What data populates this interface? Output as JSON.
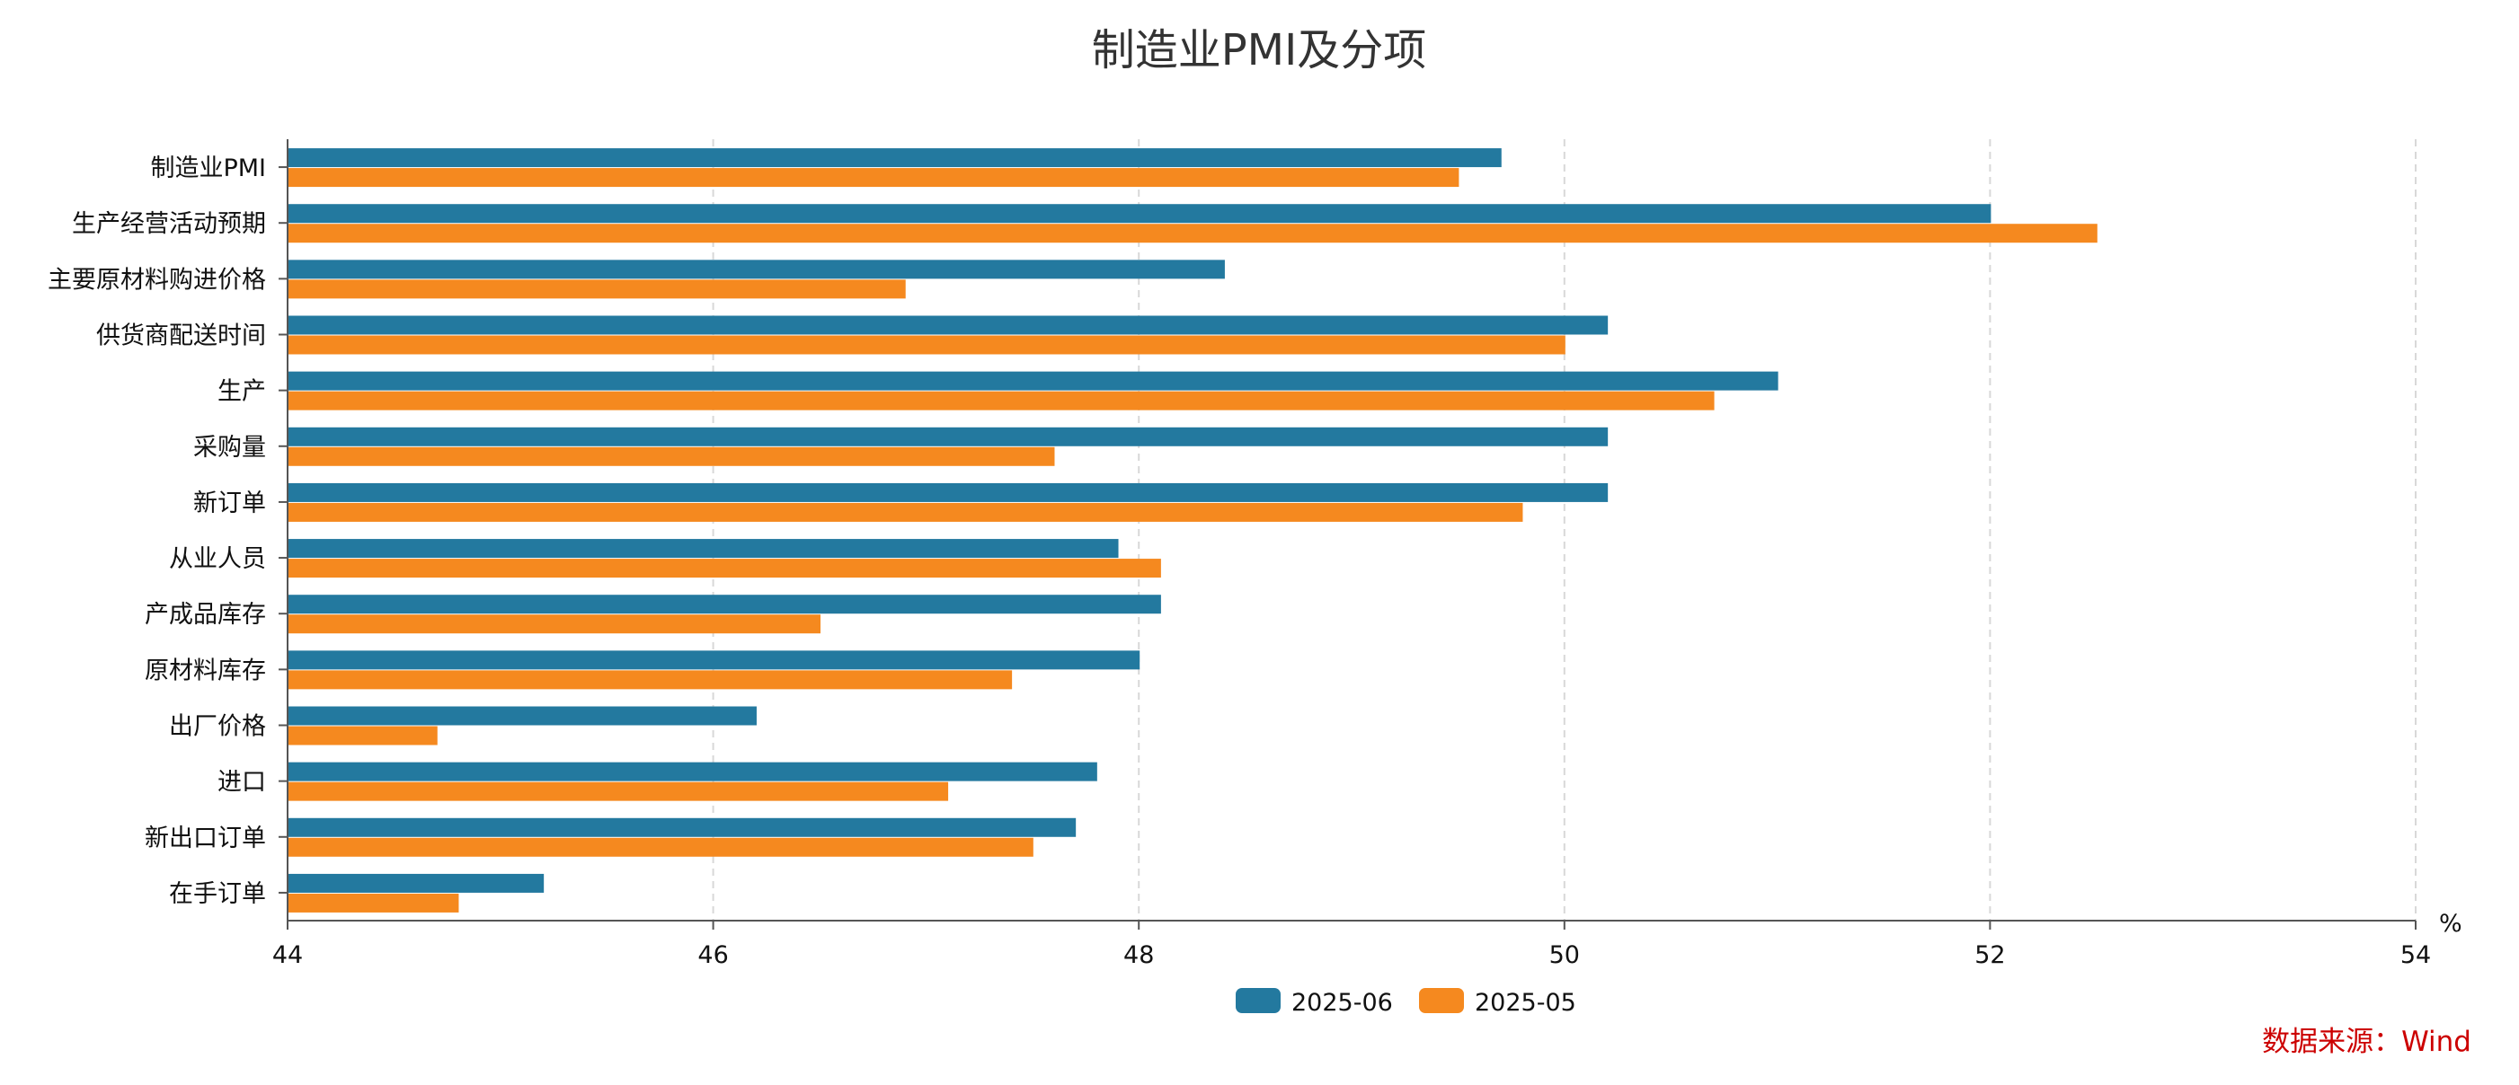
{
  "chart_data": {
    "type": "bar",
    "orientation": "horizontal",
    "title": "制造业PMI及分项",
    "unit": "%",
    "categories": [
      "制造业PMI",
      "生产经营活动预期",
      "主要原材料购进价格",
      "供货商配送时间",
      "生产",
      "采购量",
      "新订单",
      "从业人员",
      "产成品库存",
      "原材料库存",
      "出厂价格",
      "进口",
      "新出口订单",
      "在手订单"
    ],
    "series": [
      {
        "name": "2025-06",
        "color": "#23799f",
        "values": [
          49.7,
          52.0,
          48.4,
          50.2,
          51.0,
          50.2,
          50.2,
          47.9,
          48.1,
          48.0,
          46.2,
          47.8,
          47.7,
          45.2
        ]
      },
      {
        "name": "2025-05",
        "color": "#f5891f",
        "values": [
          49.5,
          52.5,
          46.9,
          50.0,
          50.7,
          47.6,
          49.8,
          48.1,
          46.5,
          47.4,
          44.7,
          47.1,
          47.5,
          44.8
        ]
      }
    ],
    "xlim": [
      44,
      54
    ],
    "xticks": [
      "44",
      "46",
      "48",
      "50",
      "52",
      "54"
    ],
    "grid": "vertical dashed",
    "legend_position": "bottom-center",
    "source": "数据来源：Wind",
    "source_color": "#cc0000"
  }
}
